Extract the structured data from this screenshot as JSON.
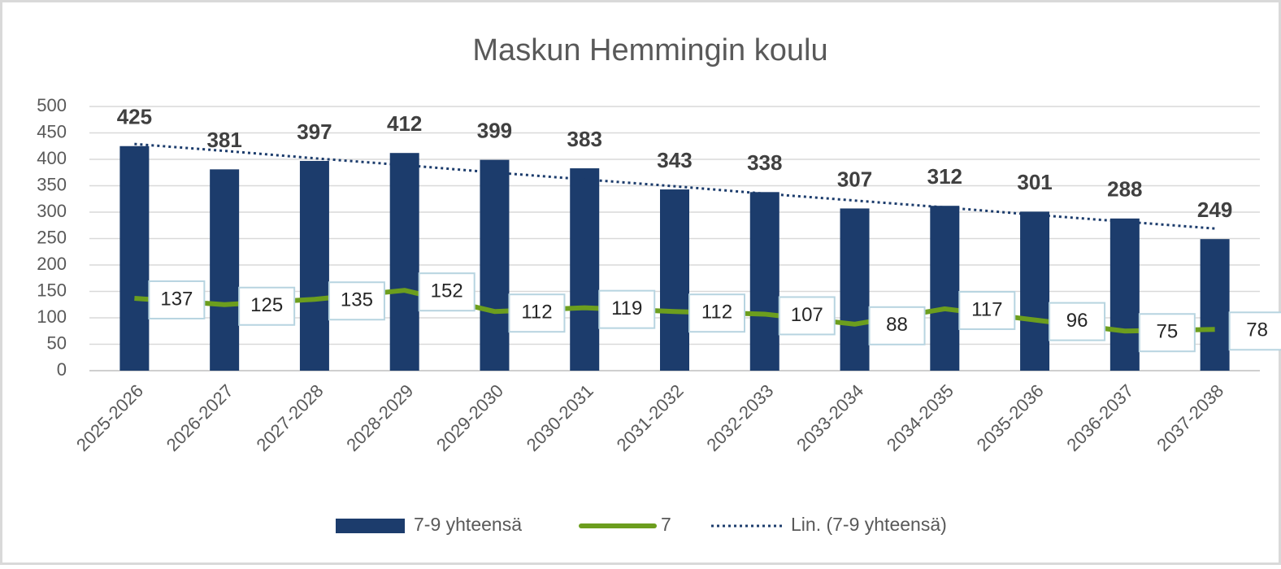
{
  "chart_data": {
    "type": "bar",
    "title": "Maskun Hemmingin koulu",
    "categories": [
      "2025-2026",
      "2026-2027",
      "2027-2028",
      "2028-2029",
      "2029-2030",
      "2030-2031",
      "2031-2032",
      "2032-2033",
      "2033-2034",
      "2034-2035",
      "2035-2036",
      "2036-2037",
      "2037-2038"
    ],
    "series": [
      {
        "name": "7-9 yhteensä",
        "type": "bar",
        "color": "#1c3c6c",
        "values": [
          425,
          381,
          397,
          412,
          399,
          383,
          343,
          338,
          307,
          312,
          301,
          288,
          249
        ]
      },
      {
        "name": "7",
        "type": "line",
        "color": "#6c9e1e",
        "values": [
          137,
          125,
          135,
          152,
          112,
          119,
          112,
          107,
          88,
          117,
          96,
          75,
          78
        ]
      },
      {
        "name": "Lin. (7-9 yhteensä)",
        "type": "trend",
        "color": "#1c3c6c",
        "values": [
          429,
          416,
          402,
          389,
          375,
          362,
          349,
          335,
          322,
          309,
          295,
          282,
          269
        ]
      }
    ],
    "ylim": [
      0,
      500
    ],
    "yticks": [
      0,
      50,
      100,
      150,
      200,
      250,
      300,
      350,
      400,
      450,
      500
    ],
    "grid": true,
    "legend": "bottom"
  }
}
